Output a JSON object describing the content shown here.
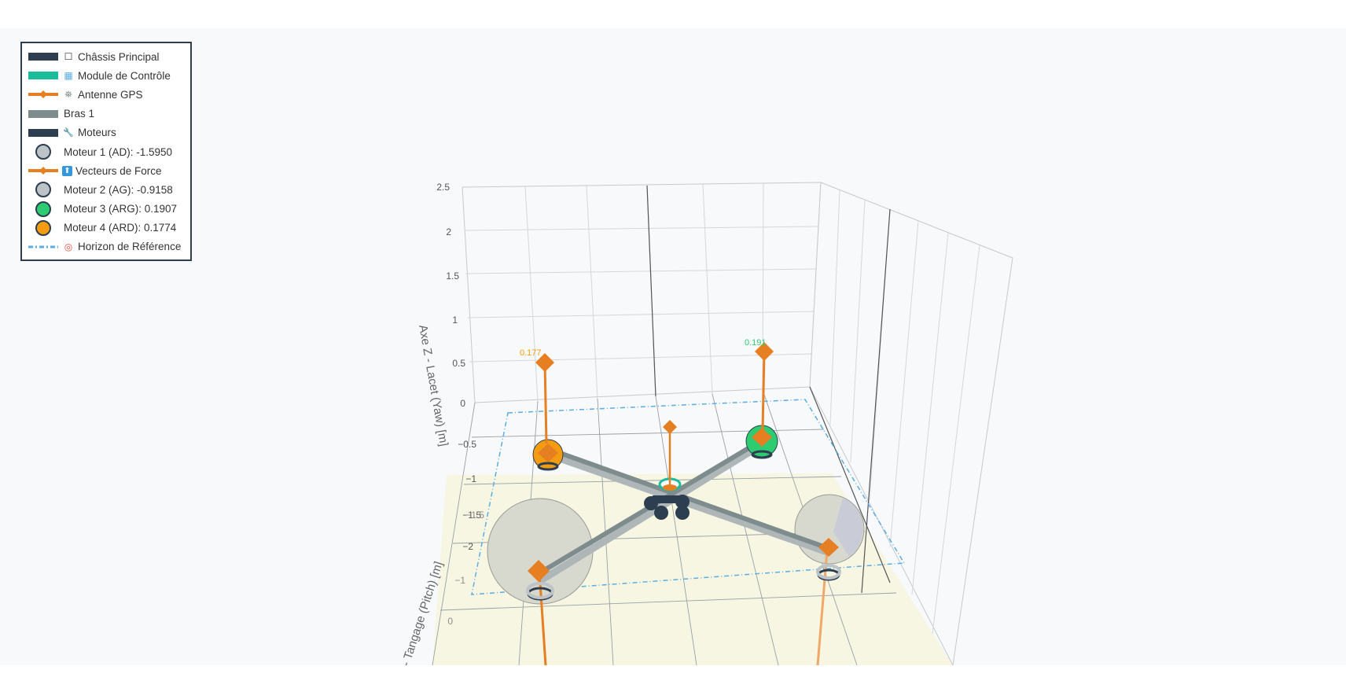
{
  "legend": {
    "items": [
      {
        "label": "Châssis Principal",
        "icon": "square-outline-icon",
        "glyph": "☐",
        "symbol": "bar",
        "color": "#2c3e50"
      },
      {
        "label": "Module de Contrôle",
        "icon": "grid-icon",
        "glyph": "▦",
        "symbol": "bar",
        "color": "#1abc9c"
      },
      {
        "label": "Antenne GPS",
        "icon": "satellite-icon",
        "glyph": "⛯",
        "symbol": "line-diamond",
        "color": "#e67e22"
      },
      {
        "label": "Bras 1",
        "icon": "",
        "glyph": "",
        "symbol": "bar",
        "color": "#7f8c8d"
      },
      {
        "label": "Moteurs",
        "icon": "wrench-icon",
        "glyph": "🔧",
        "symbol": "bar",
        "color": "#2c3e50"
      },
      {
        "label": "Moteur 1 (AD): -1.5950",
        "icon": "",
        "glyph": "",
        "symbol": "circle",
        "color": "#bdc3c7"
      },
      {
        "label": "Vecteurs de Force",
        "icon": "arrow-up-icon",
        "glyph": "⬆",
        "symbol": "line-diamond",
        "color": "#e67e22"
      },
      {
        "label": "Moteur 2 (AG): -0.9158",
        "icon": "",
        "glyph": "",
        "symbol": "circle",
        "color": "#bdc3c7"
      },
      {
        "label": "Moteur 3 (ARG): 0.1907",
        "icon": "",
        "glyph": "",
        "symbol": "circle",
        "color": "#2ecc71"
      },
      {
        "label": "Moteur 4 (ARD): 0.1774",
        "icon": "",
        "glyph": "",
        "symbol": "circle",
        "color": "#f39c12"
      },
      {
        "label": "Horizon de Référence",
        "icon": "target-icon",
        "glyph": "◎",
        "symbol": "dashdot",
        "color": "#5dade2"
      }
    ]
  },
  "scene": {
    "z_axis_title": "Axe Z - Lacet (Yaw) [m]",
    "y_axis_title": "- Tangage (Pitch) [m]",
    "z_ticks": [
      "2.5",
      "2",
      "1.5",
      "1",
      "0.5",
      "0",
      "−0.5",
      "−1",
      "−1.5",
      "−2"
    ],
    "y_ticks": [
      "−1.5",
      "−1",
      "0"
    ],
    "motor_labels": [
      {
        "text": "0.177",
        "color": "#f39c12"
      },
      {
        "text": "0.191",
        "color": "#2ecc71"
      }
    ]
  }
}
